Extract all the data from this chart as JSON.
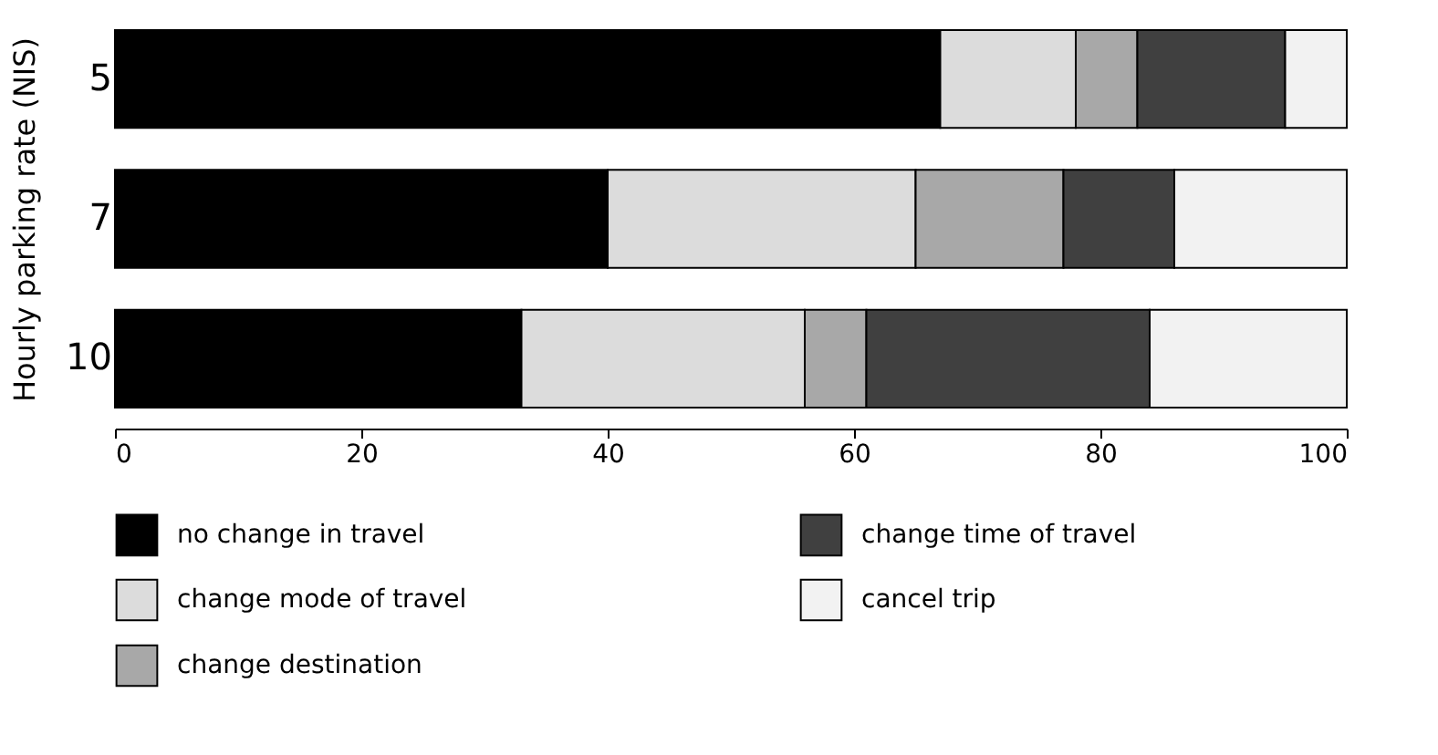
{
  "chart_data": {
    "type": "bar",
    "orientation": "horizontal",
    "stacked": true,
    "ylabel": "Hourly parking rate (NIS)",
    "categories": [
      "5",
      "7",
      "10"
    ],
    "xlim": [
      0,
      100
    ],
    "xticks": [
      0,
      20,
      40,
      60,
      80,
      100
    ],
    "grid": false,
    "legend": "bottom",
    "series": [
      {
        "name": "no change in travel",
        "color": "#000000",
        "values": [
          67,
          40,
          33
        ]
      },
      {
        "name": "change mode of travel",
        "color": "#dcdcdc",
        "values": [
          11,
          25,
          23
        ]
      },
      {
        "name": "change destination",
        "color": "#a8a8a8",
        "values": [
          5,
          12,
          5
        ]
      },
      {
        "name": "change time of travel",
        "color": "#404040",
        "values": [
          12,
          9,
          23
        ]
      },
      {
        "name": "cancel trip",
        "color": "#f2f2f2",
        "values": [
          5,
          14,
          16
        ]
      }
    ]
  }
}
